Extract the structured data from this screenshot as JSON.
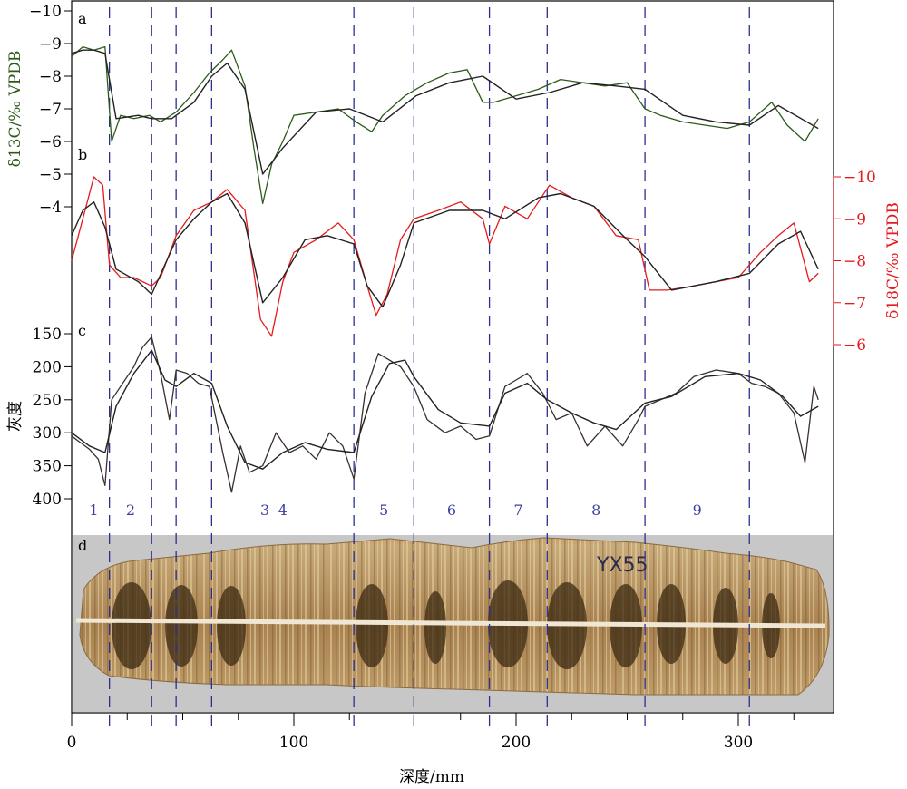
{
  "chart_data": {
    "type": "line",
    "x_axis": {
      "label": "深度/mm",
      "ticks": [
        0,
        100,
        200,
        300
      ],
      "range": [
        0,
        350
      ]
    },
    "boundaries": [
      17,
      36,
      47,
      63,
      127,
      154,
      188,
      214,
      258,
      305
    ],
    "zones": [
      "1",
      "2",
      "3",
      "4",
      "5",
      "6",
      "7",
      "8",
      "9"
    ],
    "panels": [
      {
        "letter": "a",
        "ylabel": "δ13C/‰ VPDB",
        "ticks": [
          -10,
          -9,
          -8,
          -7,
          -6,
          -5,
          -4
        ],
        "range": [
          -10,
          -4
        ],
        "color": "#2d5a1b",
        "series": [
          {
            "name": "",
            "x": [
              0,
              5,
              10,
              15,
              18,
              22,
              28,
              35,
              40,
              47,
              55,
              62,
              68,
              72,
              78,
              82,
              86,
              90,
              95,
              100,
              110,
              120,
              128,
              135,
              140,
              150,
              160,
              170,
              178,
              185,
              190,
              200,
              210,
              220,
              230,
              240,
              250,
              258,
              265,
              275,
              285,
              295,
              305,
              315,
              322,
              330,
              336
            ],
            "y": [
              -8.6,
              -8.9,
              -8.8,
              -8.9,
              -6.0,
              -6.8,
              -6.7,
              -6.8,
              -6.6,
              -6.9,
              -7.5,
              -8.1,
              -8.5,
              -8.8,
              -7.7,
              -5.8,
              -4.1,
              -5.3,
              -6.0,
              -6.8,
              -6.9,
              -7.0,
              -6.6,
              -6.3,
              -6.8,
              -7.4,
              -7.8,
              -8.1,
              -8.2,
              -7.2,
              -7.2,
              -7.4,
              -7.6,
              -7.9,
              -7.8,
              -7.7,
              -7.8,
              -7.0,
              -6.8,
              -6.6,
              -6.5,
              -6.4,
              -6.6,
              -7.2,
              -6.5,
              -6.0,
              -6.7
            ]
          },
          {
            "name": "",
            "x": [
              0,
              5,
              10,
              15,
              20,
              30,
              36,
              45,
              55,
              63,
              70,
              78,
              86,
              95,
              110,
              125,
              140,
              155,
              170,
              185,
              200,
              215,
              230,
              245,
              258,
              275,
              290,
              305,
              318,
              336
            ],
            "y": [
              -8.7,
              -8.8,
              -8.8,
              -8.7,
              -6.7,
              -6.8,
              -6.7,
              -6.7,
              -7.2,
              -8.0,
              -8.4,
              -7.6,
              -5.0,
              -5.8,
              -6.9,
              -7.0,
              -6.6,
              -7.4,
              -7.8,
              -8.0,
              -7.3,
              -7.5,
              -7.8,
              -7.7,
              -7.6,
              -6.8,
              -6.6,
              -6.5,
              -7.1,
              -6.4
            ]
          }
        ]
      },
      {
        "letter": "b",
        "ylabel": "δ18C/‰ VPDB",
        "ticks": [
          -10,
          -9,
          -8,
          -7,
          -6
        ],
        "range": [
          -10,
          -6
        ],
        "color": "#e41a1c",
        "series": [
          {
            "name": "",
            "x": [
              0,
              5,
              10,
              14,
              17,
              22,
              28,
              36,
              40,
              47,
              55,
              63,
              70,
              78,
              85,
              90,
              95,
              100,
              110,
              120,
              127,
              133,
              137,
              142,
              148,
              154,
              165,
              175,
              185,
              188,
              195,
              205,
              215,
              225,
              235,
              245,
              255,
              260,
              268,
              280,
              290,
              300,
              310,
              318,
              325,
              332,
              336
            ],
            "y": [
              -8.0,
              -9.0,
              -10.0,
              -9.8,
              -7.9,
              -7.6,
              -7.6,
              -7.4,
              -7.6,
              -8.6,
              -9.2,
              -9.4,
              -9.7,
              -9.2,
              -6.6,
              -6.2,
              -7.5,
              -8.2,
              -8.5,
              -8.9,
              -8.5,
              -7.4,
              -6.7,
              -7.2,
              -8.5,
              -9.0,
              -9.2,
              -9.4,
              -9.0,
              -8.4,
              -9.3,
              -9.0,
              -9.8,
              -9.5,
              -9.3,
              -8.6,
              -8.5,
              -7.3,
              -7.3,
              -7.4,
              -7.5,
              -7.6,
              -8.2,
              -8.6,
              -8.9,
              -7.5,
              -7.7
            ]
          },
          {
            "name": "",
            "x": [
              0,
              5,
              10,
              15,
              20,
              30,
              36,
              47,
              55,
              63,
              70,
              78,
              86,
              95,
              105,
              115,
              127,
              133,
              140,
              148,
              154,
              170,
              185,
              195,
              210,
              220,
              235,
              250,
              258,
              270,
              290,
              305,
              318,
              328,
              336
            ],
            "y": [
              -8.6,
              -9.2,
              -9.4,
              -8.8,
              -7.8,
              -7.5,
              -7.2,
              -8.5,
              -9.0,
              -9.4,
              -9.6,
              -8.9,
              -7.0,
              -7.6,
              -8.5,
              -8.6,
              -8.4,
              -7.4,
              -6.9,
              -7.9,
              -8.9,
              -9.2,
              -9.2,
              -9.0,
              -9.5,
              -9.6,
              -9.3,
              -8.5,
              -8.1,
              -7.3,
              -7.5,
              -7.7,
              -8.4,
              -8.7,
              -7.8
            ]
          }
        ]
      },
      {
        "letter": "c",
        "ylabel": "灰度",
        "ticks": [
          400,
          350,
          300,
          250,
          200,
          150
        ],
        "range": [
          150,
          400
        ],
        "color": "#3a2f2f",
        "series": [
          {
            "name": "",
            "x": [
              0,
              4,
              8,
              12,
              15,
              18,
              22,
              28,
              32,
              36,
              40,
              44,
              47,
              52,
              57,
              62,
              68,
              72,
              76,
              80,
              86,
              92,
              98,
              104,
              110,
              116,
              122,
              127,
              132,
              138,
              143,
              148,
              154,
              160,
              168,
              175,
              182,
              188,
              195,
              200,
              205,
              212,
              218,
              225,
              232,
              240,
              248,
              255,
              258,
              265,
              272,
              280,
              290,
              300,
              306,
              312,
              318,
              325,
              330,
              334,
              336
            ],
            "y": [
              305,
              315,
              325,
              340,
              380,
              250,
              230,
              200,
              170,
              155,
              210,
              280,
              205,
              210,
              225,
              230,
              330,
              390,
              320,
              360,
              350,
              300,
              330,
              320,
              340,
              300,
              320,
              370,
              240,
              180,
              190,
              200,
              230,
              280,
              300,
              290,
              310,
              305,
              230,
              220,
              210,
              240,
              280,
              270,
              320,
              290,
              320,
              280,
              260,
              250,
              240,
              215,
              205,
              210,
              225,
              230,
              240,
              270,
              345,
              230,
              250
            ]
          },
          {
            "name": "",
            "x": [
              0,
              8,
              15,
              20,
              28,
              36,
              42,
              47,
              55,
              63,
              70,
              78,
              86,
              95,
              105,
              115,
              127,
              135,
              143,
              150,
              154,
              165,
              175,
              188,
              195,
              205,
              214,
              225,
              235,
              245,
              258,
              270,
              285,
              300,
              310,
              320,
              328,
              336
            ],
            "y": [
              300,
              320,
              330,
              260,
              210,
              175,
              220,
              230,
              210,
              225,
              290,
              345,
              355,
              330,
              315,
              325,
              330,
              245,
              195,
              190,
              215,
              265,
              285,
              290,
              240,
              225,
              250,
              270,
              285,
              295,
              255,
              245,
              215,
              210,
              220,
              245,
              275,
              260
            ]
          }
        ]
      }
    ],
    "photo": {
      "letter": "d",
      "label": "YX55"
    }
  }
}
